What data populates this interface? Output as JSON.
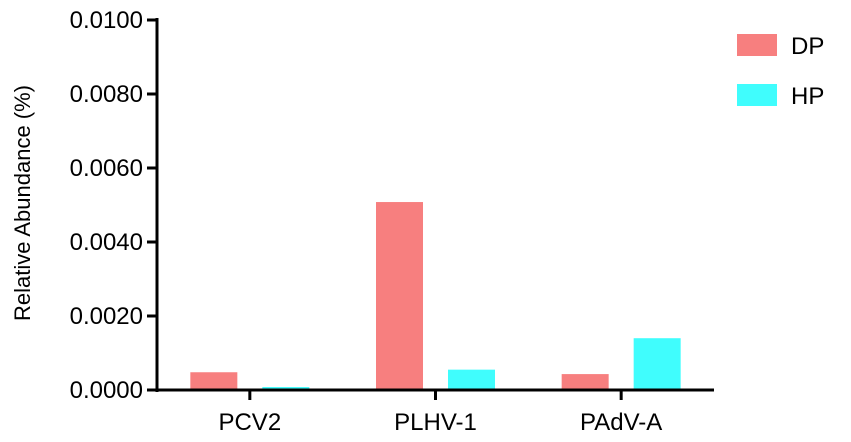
{
  "chart_data": {
    "type": "bar",
    "title": "",
    "xlabel": "",
    "ylabel": "Relative Abundance (%)",
    "ylim": [
      0,
      0.01
    ],
    "yticks": [
      "0.0000",
      "0.0020",
      "0.0040",
      "0.0060",
      "0.0080",
      "0.0100"
    ],
    "categories": [
      "PCV2",
      "PLHV-1",
      "PAdV-A"
    ],
    "series": [
      {
        "name": "DP",
        "color": "#f77f7f",
        "values": [
          0.00048,
          0.00508,
          0.00043
        ]
      },
      {
        "name": "HP",
        "color": "#40fdfd",
        "values": [
          8e-05,
          0.00055,
          0.0014
        ]
      }
    ],
    "legend_position": "top-right",
    "grid": false
  }
}
